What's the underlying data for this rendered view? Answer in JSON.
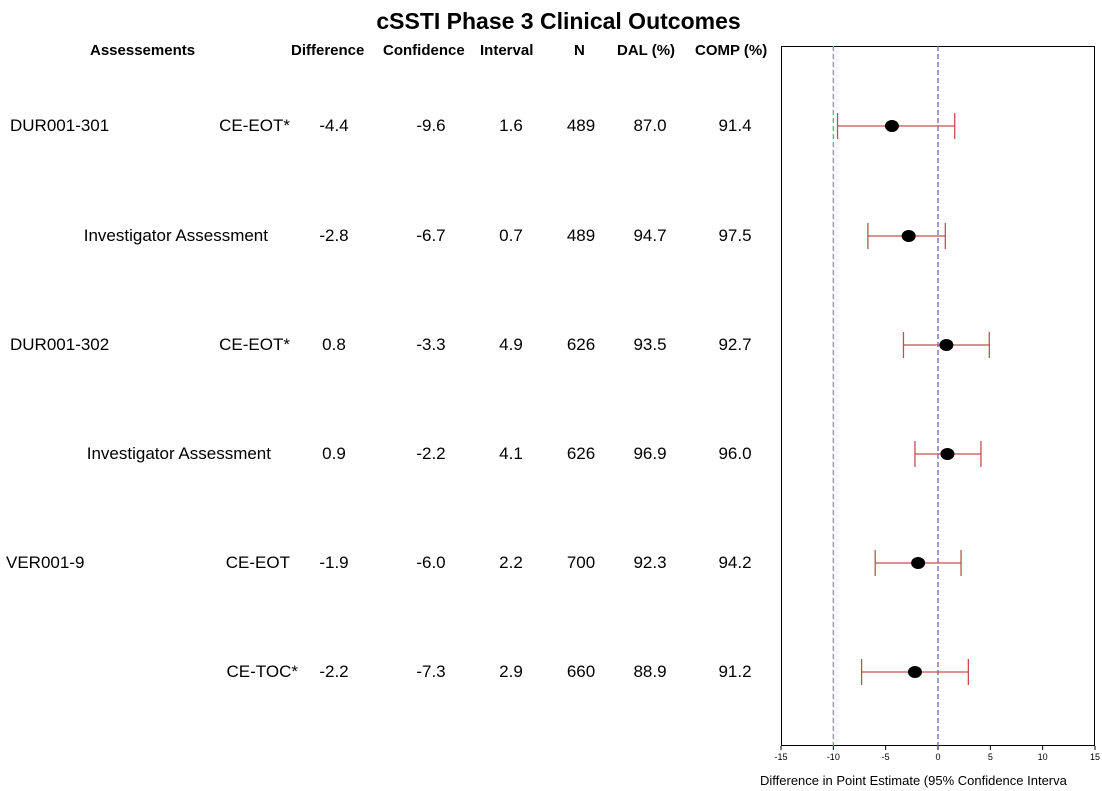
{
  "chart_data": {
    "type": "forest",
    "title": "cSSTI Phase 3 Clinical Outcomes",
    "columns": {
      "assessments": "Assessements",
      "difference": "Difference",
      "ci_lower": "Confidence",
      "ci_upper": "Interval",
      "n": "N",
      "dal": "DAL (%)",
      "comp": "COMP (%)"
    },
    "rows": [
      {
        "study": "DUR001-301",
        "assessment": "CE-EOT*",
        "difference": "-4.4",
        "lower": "-9.6",
        "upper": "1.6",
        "n": "489",
        "dal": "87.0",
        "comp": "91.4",
        "est": -4.4,
        "lo": -9.6,
        "hi": 1.6
      },
      {
        "study": "",
        "assessment": "Investigator Assessment",
        "difference": "-2.8",
        "lower": "-6.7",
        "upper": "0.7",
        "n": "489",
        "dal": "94.7",
        "comp": "97.5",
        "est": -2.8,
        "lo": -6.7,
        "hi": 0.7
      },
      {
        "study": "DUR001-302",
        "assessment": "CE-EOT*",
        "difference": "0.8",
        "lower": "-3.3",
        "upper": "4.9",
        "n": "626",
        "dal": "93.5",
        "comp": "92.7",
        "est": 0.8,
        "lo": -3.3,
        "hi": 4.9
      },
      {
        "study": "",
        "assessment": "Investigator Assessment",
        "difference": "0.9",
        "lower": "-2.2",
        "upper": "4.1",
        "n": "626",
        "dal": "96.9",
        "comp": "96.0",
        "est": 0.9,
        "lo": -2.2,
        "hi": 4.1
      },
      {
        "study": "VER001-9",
        "assessment": "CE-EOT",
        "difference": "-1.9",
        "lower": "-6.0",
        "upper": "2.2",
        "n": "700",
        "dal": "92.3",
        "comp": "94.2",
        "est": -1.9,
        "lo": -6.0,
        "hi": 2.2
      },
      {
        "study": "",
        "assessment": "CE-TOC*",
        "difference": "-2.2",
        "lower": "-7.3",
        "upper": "2.9",
        "n": "660",
        "dal": "88.9",
        "comp": "91.2",
        "est": -2.2,
        "lo": -7.3,
        "hi": 2.9
      }
    ],
    "xlim": [
      -15,
      15
    ],
    "xticks": [
      -15,
      -10,
      -5,
      0,
      5,
      10,
      15
    ],
    "xlabel": "Difference in Point Estimate (95% Confidence Interva",
    "reference_lines": [
      {
        "x": -10,
        "style": "dashed",
        "color": "#44cc44"
      },
      {
        "x": 0,
        "style": "dashed",
        "color": "#6a6ab0"
      }
    ],
    "colors": {
      "ci": "#c05050",
      "point": "#000000",
      "frame": "#000000"
    }
  }
}
